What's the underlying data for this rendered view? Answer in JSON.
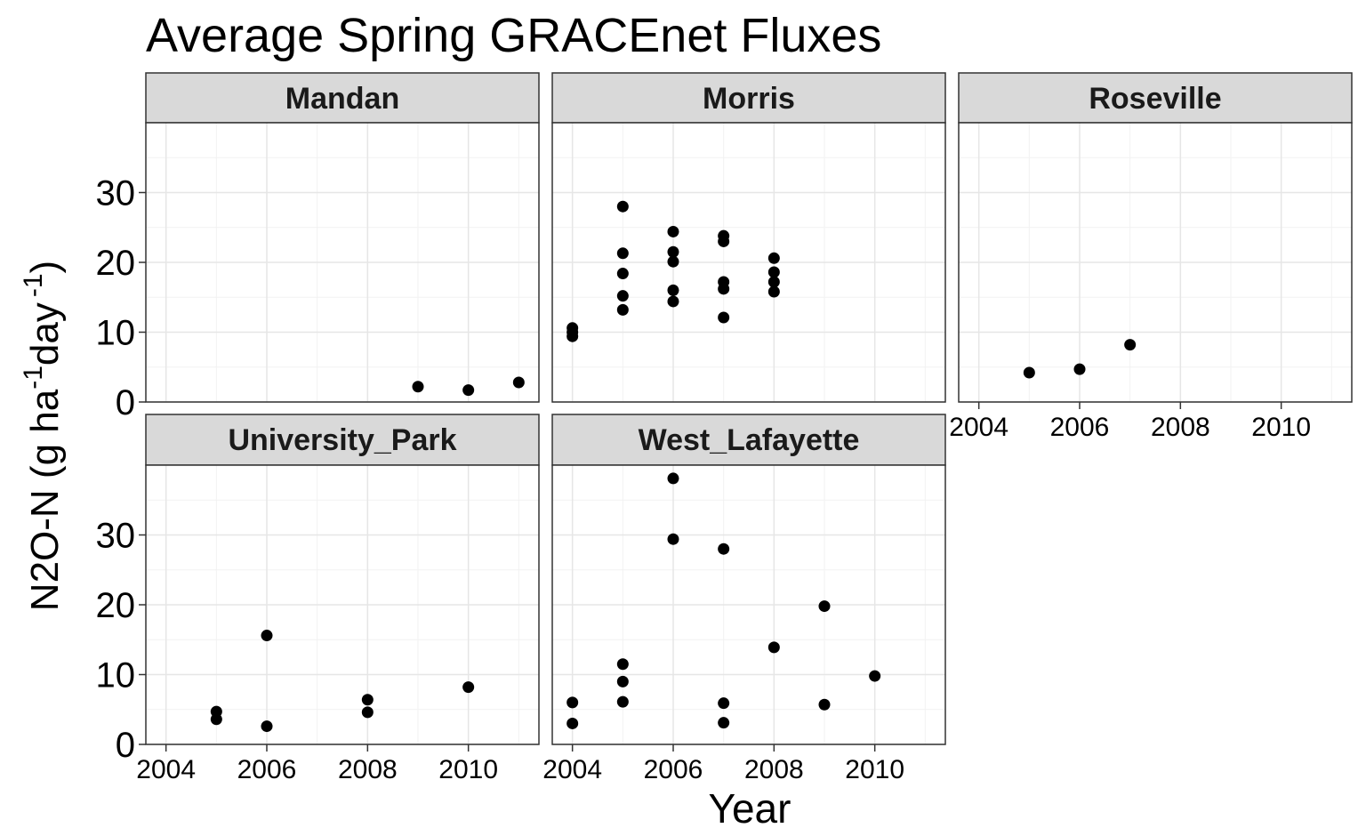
{
  "chart_data": {
    "type": "scatter",
    "title": "Average Spring GRACEnet Fluxes",
    "xlabel": "Year",
    "ylabel": "N2O-N (g ha-1 day -1)",
    "ylabel_parts": {
      "pre": "N2O-N (g ha",
      "sup1": "-1",
      "mid": "day",
      "sup2": "-1",
      "post": ")"
    },
    "xlim": [
      2003.6,
      2011.4
    ],
    "ylim": [
      0,
      40
    ],
    "x_ticks": [
      2004,
      2006,
      2008,
      2010
    ],
    "y_ticks": [
      0,
      10,
      20,
      30
    ],
    "grid": true,
    "point_color": "#000000",
    "strip_fill": "#d9d9d9",
    "panels": [
      {
        "name": "Mandan",
        "points": [
          [
            2009,
            2.2
          ],
          [
            2010,
            1.7
          ],
          [
            2011,
            2.8
          ]
        ]
      },
      {
        "name": "Morris",
        "points": [
          [
            2004,
            9.4
          ],
          [
            2004,
            10.0
          ],
          [
            2004,
            10.6
          ],
          [
            2005,
            13.2
          ],
          [
            2005,
            15.2
          ],
          [
            2005,
            18.4
          ],
          [
            2005,
            21.3
          ],
          [
            2005,
            28.0
          ],
          [
            2006,
            14.4
          ],
          [
            2006,
            16.0
          ],
          [
            2006,
            20.1
          ],
          [
            2006,
            21.5
          ],
          [
            2006,
            24.4
          ],
          [
            2007,
            12.1
          ],
          [
            2007,
            16.2
          ],
          [
            2007,
            17.2
          ],
          [
            2007,
            23.0
          ],
          [
            2007,
            23.8
          ],
          [
            2008,
            15.8
          ],
          [
            2008,
            17.2
          ],
          [
            2008,
            18.6
          ],
          [
            2008,
            20.6
          ]
        ]
      },
      {
        "name": "Roseville",
        "points": [
          [
            2005,
            4.2
          ],
          [
            2006,
            4.7
          ],
          [
            2007,
            8.2
          ]
        ]
      },
      {
        "name": "University_Park",
        "points": [
          [
            2005,
            3.6
          ],
          [
            2005,
            4.7
          ],
          [
            2006,
            2.6
          ],
          [
            2006,
            15.6
          ],
          [
            2008,
            4.6
          ],
          [
            2008,
            6.4
          ],
          [
            2010,
            8.2
          ]
        ]
      },
      {
        "name": "West_Lafayette",
        "points": [
          [
            2004,
            3.0
          ],
          [
            2004,
            6.0
          ],
          [
            2005,
            6.1
          ],
          [
            2005,
            9.0
          ],
          [
            2005,
            11.5
          ],
          [
            2006,
            29.4
          ],
          [
            2006,
            38.1
          ],
          [
            2007,
            3.1
          ],
          [
            2007,
            5.9
          ],
          [
            2007,
            28.0
          ],
          [
            2008,
            13.9
          ],
          [
            2009,
            5.7
          ],
          [
            2009,
            19.8
          ],
          [
            2010,
            9.8
          ]
        ]
      }
    ]
  }
}
